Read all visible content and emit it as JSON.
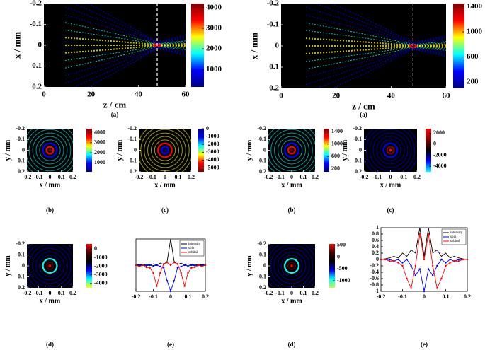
{
  "chart_data": [
    {
      "type": "heatmap",
      "caption": "(a)",
      "xlabel": "z / cm",
      "ylabel": "x / mm",
      "xlim": [
        0,
        60
      ],
      "xticks": [
        0,
        20,
        40,
        60
      ],
      "ylim": [
        -0.2,
        0.2
      ],
      "yticks": [
        -0.2,
        -0.1,
        0,
        0.1,
        0.2
      ],
      "colorbar": {
        "lim": [
          150,
          4200
        ],
        "ticks": [
          1000,
          2000,
          3000,
          4000
        ],
        "colors": [
          "#800000",
          "#ff0000",
          "#ffff00",
          "#00ffff",
          "#0000ff",
          "#000080"
        ]
      }
    },
    {
      "type": "heatmap",
      "caption": "(a)",
      "xlabel": "z / cm",
      "ylabel": "x / mm",
      "xlim": [
        0,
        60
      ],
      "xticks": [
        0,
        20,
        40,
        60
      ],
      "ylim": [
        -0.2,
        0.2
      ],
      "yticks": [
        -0.2,
        -0.1,
        0,
        0.1,
        0.2
      ],
      "colorbar": {
        "lim": [
          100,
          1450
        ],
        "ticks": [
          200,
          600,
          1000,
          1400
        ],
        "colors": [
          "#800000",
          "#ff0000",
          "#ffff00",
          "#00ffff",
          "#0000ff",
          "#000080"
        ]
      }
    },
    {
      "type": "heatmap",
      "caption": "(b)",
      "xlabel": "x / mm",
      "ylabel": "y / mm",
      "xlim": [
        -0.2,
        0.2
      ],
      "xticks": [
        -0.2,
        -0.1,
        0,
        0.1,
        0.2
      ],
      "ylim": [
        -0.2,
        0.2
      ],
      "yticks": [
        -0.2,
        -0.1,
        0,
        0.1,
        0.2
      ],
      "colorbar": {
        "lim": [
          100,
          4400
        ],
        "ticks": [
          1000,
          2000,
          3000,
          4000
        ],
        "colors": [
          "#800000",
          "#ff0000",
          "#ffff00",
          "#00ffff",
          "#0000ff",
          "#000080"
        ]
      }
    },
    {
      "type": "heatmap",
      "caption": "(c)",
      "xlabel": "x / mm",
      "ylabel": "y / mm",
      "xlim": [
        -0.2,
        0.2
      ],
      "xticks": [
        -0.2,
        -0.1,
        0,
        0.1,
        0.2
      ],
      "ylim": [
        -0.2,
        0.2
      ],
      "yticks": [
        -0.2,
        -0.1,
        0,
        0.1,
        0.2
      ],
      "colorbar": {
        "lim": [
          -5500,
          0
        ],
        "ticks": [
          0,
          -1000,
          -2000,
          -3000,
          -4000,
          -5000
        ],
        "colors": [
          "#000080",
          "#0000ff",
          "#00ffff",
          "#ffff00",
          "#ff0000",
          "#800000"
        ]
      }
    },
    {
      "type": "heatmap",
      "caption": "(b)",
      "xlabel": "x / mm",
      "ylabel": "y / mm",
      "xlim": [
        -0.2,
        0.2
      ],
      "xticks": [
        -0.2,
        -0.1,
        0,
        0.1,
        0.2
      ],
      "ylim": [
        -0.2,
        0.2
      ],
      "yticks": [
        -0.2,
        -0.1,
        0,
        0.1,
        0.2
      ],
      "colorbar": {
        "lim": [
          100,
          1500
        ],
        "ticks": [
          200,
          600,
          1000,
          1400
        ],
        "colors": [
          "#800000",
          "#ff0000",
          "#ffff00",
          "#00ffff",
          "#0000ff",
          "#000080"
        ]
      }
    },
    {
      "type": "heatmap",
      "caption": "(c)",
      "xlabel": "x / mm",
      "ylabel": "y / mm",
      "xlim": [
        -0.2,
        0.2
      ],
      "xticks": [
        -0.2,
        -0.1,
        0,
        0.1,
        0.2
      ],
      "ylim": [
        -0.2,
        0.2
      ],
      "yticks": [
        -0.2,
        -0.1,
        0,
        0.1,
        0.2
      ],
      "colorbar": {
        "lim": [
          -5000,
          2800
        ],
        "ticks": [
          2000,
          0,
          -2000,
          -4000
        ],
        "colors": [
          "#ff0000",
          "#800000",
          "#000000",
          "#0000ff",
          "#00ffff"
        ]
      }
    },
    {
      "type": "heatmap",
      "caption": "(d)",
      "xlabel": "x / mm",
      "ylabel": "y / mm",
      "xlim": [
        -0.2,
        0.2
      ],
      "xticks": [
        -0.2,
        -0.1,
        0,
        0.1,
        0.2
      ],
      "ylim": [
        -0.2,
        0.2
      ],
      "yticks": [
        -0.2,
        -0.1,
        0,
        0.1,
        0.2
      ],
      "colorbar": {
        "lim": [
          -4500,
          600
        ],
        "ticks": [
          0,
          -1000,
          -2000,
          -3000,
          -4000
        ],
        "colors": [
          "#ff0000",
          "#400000",
          "#000000",
          "#0000ff",
          "#00ffff",
          "#ffff00"
        ]
      }
    },
    {
      "type": "line",
      "caption": "(e)",
      "xlim": [
        -0.2,
        0.2
      ],
      "xticks": [
        -0.2,
        -0.1,
        0,
        0.1,
        0.2
      ],
      "ylim": [
        -1,
        1
      ],
      "legend": "upper right",
      "x": [
        -0.2,
        -0.18,
        -0.16,
        -0.14,
        -0.12,
        -0.1,
        -0.08,
        -0.06,
        -0.04,
        -0.02,
        0,
        0.02,
        0.04,
        0.06,
        0.08,
        0.1,
        0.12,
        0.14,
        0.16,
        0.18,
        0.2
      ],
      "series": [
        {
          "name": "intensity",
          "color": "#000000",
          "values": [
            0,
            0.02,
            0,
            0.03,
            0,
            0.05,
            0,
            0.08,
            0.02,
            0.15,
            1,
            0.15,
            0.02,
            0.08,
            0,
            0.05,
            0,
            0.03,
            0,
            0.02,
            0
          ]
        },
        {
          "name": "spin",
          "color": "#0000ff",
          "values": [
            0,
            -0.02,
            0,
            -0.02,
            0,
            -0.03,
            0,
            -0.05,
            -0.1,
            -0.6,
            -1,
            -0.6,
            -0.1,
            -0.05,
            0,
            -0.03,
            0,
            -0.02,
            0,
            -0.02,
            0
          ]
        },
        {
          "name": "orbital",
          "color": "#ff0000",
          "values": [
            0,
            -0.05,
            0,
            -0.08,
            -0.1,
            -0.3,
            -0.8,
            -0.3,
            0.05,
            0.1,
            0,
            0.1,
            0.05,
            -0.3,
            -0.8,
            -0.3,
            -0.1,
            -0.08,
            0,
            -0.05,
            0
          ]
        }
      ]
    },
    {
      "type": "heatmap",
      "caption": "(d)",
      "xlabel": "x / mm",
      "ylabel": "y / mm",
      "xlim": [
        -0.2,
        0.2
      ],
      "xticks": [
        -0.2,
        -0.1,
        0,
        0.1,
        0.2
      ],
      "ylim": [
        -0.2,
        0.2
      ],
      "yticks": [
        -0.2,
        -0.1,
        0,
        0.1,
        0.2
      ],
      "colorbar": {
        "lim": [
          -1300,
          550
        ],
        "ticks": [
          500,
          0,
          -500,
          -1000
        ],
        "colors": [
          "#ff0000",
          "#400000",
          "#000000",
          "#0000ff",
          "#00ffff",
          "#c0ff40"
        ]
      }
    },
    {
      "type": "line",
      "caption": "(e)",
      "xlim": [
        -0.2,
        0.2
      ],
      "xticks": [
        -0.2,
        -0.1,
        0,
        0.1,
        0.2
      ],
      "ylim": [
        -1,
        1
      ],
      "yticks": [
        -1,
        -0.8,
        -0.6,
        -0.4,
        -0.2,
        0,
        0.2,
        0.4,
        0.6,
        0.8,
        1
      ],
      "legend": "upper right",
      "x": [
        -0.2,
        -0.18,
        -0.16,
        -0.14,
        -0.12,
        -0.1,
        -0.08,
        -0.06,
        -0.04,
        -0.02,
        0,
        0.02,
        0.04,
        0.06,
        0.08,
        0.1,
        0.12,
        0.14,
        0.16,
        0.18,
        0.2
      ],
      "series": [
        {
          "name": "intensity",
          "color": "#000000",
          "values": [
            0,
            0.02,
            0.05,
            0.1,
            0.05,
            0.2,
            0.1,
            0.3,
            0.2,
            1,
            0.1,
            1,
            0.2,
            0.3,
            0.1,
            0.2,
            0.05,
            0.1,
            0.05,
            0.02,
            0
          ]
        },
        {
          "name": "spin",
          "color": "#0000ff",
          "values": [
            0,
            0,
            0,
            -0.05,
            0,
            -0.1,
            0,
            -0.2,
            -0.5,
            -0.3,
            -1,
            -0.3,
            -0.5,
            -0.2,
            0,
            -0.1,
            0,
            -0.05,
            0,
            0,
            0
          ]
        },
        {
          "name": "orbital",
          "color": "#ff0000",
          "values": [
            0,
            0,
            -0.05,
            -0.05,
            -0.1,
            -0.2,
            -0.6,
            -0.9,
            -0.2,
            0.8,
            0,
            0.8,
            -0.2,
            -0.9,
            -0.6,
            -0.2,
            -0.1,
            -0.05,
            -0.05,
            0,
            0
          ]
        }
      ]
    }
  ]
}
